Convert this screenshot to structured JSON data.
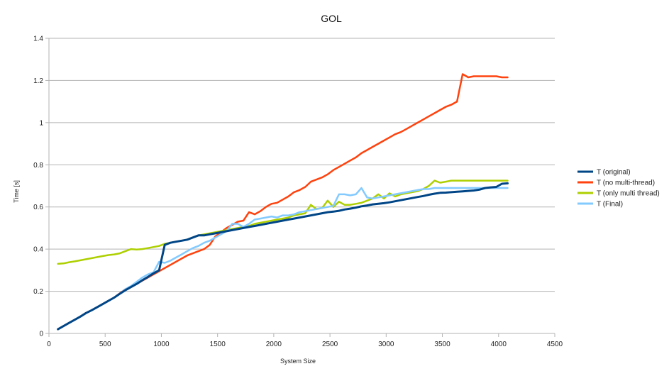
{
  "chart_data": {
    "type": "line",
    "title": "GOL",
    "xlabel": "System Size",
    "ylabel": "Time [s]",
    "xlim": [
      0,
      4500
    ],
    "ylim": [
      0,
      1.4
    ],
    "xticks": [
      0,
      500,
      1000,
      1500,
      2000,
      2500,
      3000,
      3500,
      4000,
      4500
    ],
    "yticks": [
      0,
      0.2,
      0.4,
      0.6,
      0.8,
      1,
      1.2,
      1.4
    ],
    "xtick_labels": [
      "0",
      "500",
      "1000",
      "1500",
      "2000",
      "2500",
      "3000",
      "3500",
      "4000",
      "4500"
    ],
    "ytick_labels": [
      "0",
      "0.2",
      "0.4",
      "0.6",
      "0.8",
      "1",
      "1.2",
      "1.4"
    ],
    "grid": "horizontal",
    "legend_position": "right",
    "x": [
      80,
      130,
      180,
      230,
      280,
      330,
      380,
      430,
      480,
      530,
      580,
      630,
      680,
      730,
      780,
      830,
      880,
      930,
      980,
      1030,
      1080,
      1130,
      1180,
      1230,
      1280,
      1330,
      1380,
      1430,
      1480,
      1530,
      1580,
      1630,
      1680,
      1730,
      1780,
      1830,
      1880,
      1930,
      1980,
      2030,
      2080,
      2130,
      2180,
      2230,
      2280,
      2330,
      2380,
      2430,
      2480,
      2530,
      2580,
      2630,
      2680,
      2730,
      2780,
      2830,
      2880,
      2930,
      2980,
      3030,
      3080,
      3130,
      3180,
      3230,
      3280,
      3330,
      3380,
      3430,
      3480,
      3530,
      3580,
      3630,
      3680,
      3730,
      3780,
      3830,
      3880,
      3930,
      3980,
      4030,
      4080
    ],
    "series": [
      {
        "name": "T (original)",
        "color": "#004586",
        "values": [
          0.02,
          0.035,
          0.05,
          0.065,
          0.08,
          0.097,
          0.11,
          0.125,
          0.14,
          0.155,
          0.17,
          0.188,
          0.205,
          0.22,
          0.235,
          0.252,
          0.268,
          0.285,
          0.3,
          0.42,
          0.43,
          0.435,
          0.44,
          0.445,
          0.455,
          0.465,
          0.465,
          0.47,
          0.475,
          0.48,
          0.485,
          0.49,
          0.495,
          0.5,
          0.505,
          0.51,
          0.515,
          0.52,
          0.525,
          0.53,
          0.535,
          0.54,
          0.545,
          0.55,
          0.555,
          0.56,
          0.565,
          0.57,
          0.575,
          0.578,
          0.582,
          0.588,
          0.592,
          0.597,
          0.603,
          0.607,
          0.612,
          0.615,
          0.618,
          0.622,
          0.627,
          0.632,
          0.637,
          0.642,
          0.647,
          0.652,
          0.658,
          0.663,
          0.667,
          0.668,
          0.67,
          0.672,
          0.674,
          0.676,
          0.678,
          0.682,
          0.69,
          0.693,
          0.695,
          0.71,
          0.712
        ]
      },
      {
        "name": "T (no multi-thread)",
        "color": "#ff420e",
        "values": [
          0.02,
          0.035,
          0.05,
          0.065,
          0.08,
          0.097,
          0.11,
          0.125,
          0.14,
          0.155,
          0.17,
          0.19,
          0.21,
          0.22,
          0.235,
          0.25,
          0.265,
          0.28,
          0.295,
          0.31,
          0.325,
          0.34,
          0.355,
          0.37,
          0.38,
          0.39,
          0.4,
          0.42,
          0.46,
          0.48,
          0.5,
          0.515,
          0.53,
          0.535,
          0.575,
          0.565,
          0.58,
          0.6,
          0.615,
          0.62,
          0.635,
          0.65,
          0.67,
          0.68,
          0.695,
          0.72,
          0.73,
          0.74,
          0.755,
          0.775,
          0.79,
          0.805,
          0.82,
          0.835,
          0.855,
          0.87,
          0.885,
          0.9,
          0.915,
          0.93,
          0.945,
          0.955,
          0.97,
          0.985,
          1.0,
          1.015,
          1.03,
          1.045,
          1.06,
          1.075,
          1.085,
          1.1,
          1.23,
          1.215,
          1.22,
          1.22,
          1.22,
          1.22,
          1.22,
          1.215,
          1.215
        ]
      },
      {
        "name": "T (only multi thread)",
        "color": "#aecf00",
        "values": [
          0.33,
          0.332,
          0.338,
          0.342,
          0.347,
          0.352,
          0.357,
          0.362,
          0.367,
          0.372,
          0.375,
          0.38,
          0.39,
          0.4,
          0.398,
          0.4,
          0.405,
          0.41,
          0.415,
          0.425,
          0.43,
          0.435,
          0.44,
          0.445,
          0.455,
          0.465,
          0.47,
          0.475,
          0.48,
          0.485,
          0.49,
          0.495,
          0.5,
          0.505,
          0.51,
          0.52,
          0.525,
          0.53,
          0.535,
          0.54,
          0.545,
          0.55,
          0.56,
          0.565,
          0.57,
          0.61,
          0.59,
          0.595,
          0.63,
          0.6,
          0.625,
          0.61,
          0.61,
          0.615,
          0.62,
          0.63,
          0.64,
          0.66,
          0.64,
          0.665,
          0.65,
          0.66,
          0.665,
          0.67,
          0.675,
          0.685,
          0.7,
          0.725,
          0.715,
          0.72,
          0.725,
          0.725,
          0.725,
          0.725,
          0.725,
          0.725,
          0.725,
          0.725,
          0.725,
          0.725,
          0.725
        ]
      },
      {
        "name": "T (Final)",
        "color": "#83caff",
        "values": [
          0.02,
          0.035,
          0.05,
          0.065,
          0.08,
          0.097,
          0.11,
          0.125,
          0.14,
          0.155,
          0.17,
          0.188,
          0.21,
          0.225,
          0.245,
          0.265,
          0.28,
          0.29,
          0.34,
          0.335,
          0.345,
          0.36,
          0.375,
          0.39,
          0.405,
          0.415,
          0.43,
          0.44,
          0.455,
          0.47,
          0.485,
          0.52,
          0.52,
          0.505,
          0.52,
          0.54,
          0.545,
          0.55,
          0.555,
          0.55,
          0.56,
          0.56,
          0.565,
          0.575,
          0.58,
          0.585,
          0.59,
          0.595,
          0.6,
          0.605,
          0.66,
          0.66,
          0.655,
          0.66,
          0.69,
          0.645,
          0.64,
          0.645,
          0.65,
          0.655,
          0.66,
          0.665,
          0.67,
          0.675,
          0.68,
          0.685,
          0.685,
          0.69,
          0.69,
          0.69,
          0.69,
          0.69,
          0.69,
          0.69,
          0.69,
          0.69,
          0.69,
          0.69,
          0.69,
          0.69,
          0.69
        ]
      }
    ]
  }
}
